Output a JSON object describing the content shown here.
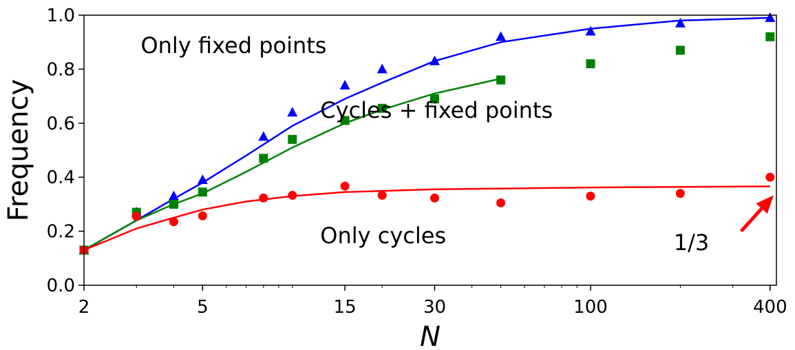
{
  "chart_data": {
    "type": "scatter",
    "xlabel": "N",
    "ylabel": "Frequency",
    "xscale": "log",
    "xlim": [
      2,
      420
    ],
    "ylim": [
      0,
      1.0
    ],
    "x_tick_labels": [
      "2",
      "5",
      "15",
      "30",
      "100",
      "400"
    ],
    "y_tick_labels": [
      "0.0",
      "0.2",
      "0.4",
      "0.6",
      "0.8",
      "1.0"
    ],
    "grid": false,
    "legend": "none",
    "series": [
      {
        "marker": "triangle",
        "color": "#0000ff",
        "points": [
          {
            "x": 2,
            "y": 0.13
          },
          {
            "x": 3,
            "y": 0.27
          },
          {
            "x": 4,
            "y": 0.33
          },
          {
            "x": 5,
            "y": 0.39
          },
          {
            "x": 8,
            "y": 0.55
          },
          {
            "x": 10,
            "y": 0.64
          },
          {
            "x": 15,
            "y": 0.74
          },
          {
            "x": 20,
            "y": 0.8
          },
          {
            "x": 30,
            "y": 0.83
          },
          {
            "x": 50,
            "y": 0.92
          },
          {
            "x": 100,
            "y": 0.94
          },
          {
            "x": 200,
            "y": 0.97
          },
          {
            "x": 400,
            "y": 0.99
          }
        ],
        "fit": [
          {
            "x": 2,
            "y": 0.13
          },
          {
            "x": 3,
            "y": 0.24
          },
          {
            "x": 4,
            "y": 0.32
          },
          {
            "x": 5,
            "y": 0.38
          },
          {
            "x": 7,
            "y": 0.48
          },
          {
            "x": 10,
            "y": 0.59
          },
          {
            "x": 15,
            "y": 0.69
          },
          {
            "x": 20,
            "y": 0.75
          },
          {
            "x": 30,
            "y": 0.83
          },
          {
            "x": 50,
            "y": 0.9
          },
          {
            "x": 100,
            "y": 0.95
          },
          {
            "x": 200,
            "y": 0.98
          },
          {
            "x": 400,
            "y": 0.99
          }
        ]
      },
      {
        "marker": "square",
        "color": "#008000",
        "points": [
          {
            "x": 2,
            "y": 0.13
          },
          {
            "x": 3,
            "y": 0.27
          },
          {
            "x": 4,
            "y": 0.3
          },
          {
            "x": 5,
            "y": 0.345
          },
          {
            "x": 8,
            "y": 0.47
          },
          {
            "x": 10,
            "y": 0.54
          },
          {
            "x": 15,
            "y": 0.61
          },
          {
            "x": 20,
            "y": 0.655
          },
          {
            "x": 30,
            "y": 0.69
          },
          {
            "x": 50,
            "y": 0.76
          },
          {
            "x": 100,
            "y": 0.82
          },
          {
            "x": 200,
            "y": 0.87
          },
          {
            "x": 400,
            "y": 0.92
          }
        ],
        "fit": [
          {
            "x": 2,
            "y": 0.13
          },
          {
            "x": 3,
            "y": 0.24
          },
          {
            "x": 4,
            "y": 0.3
          },
          {
            "x": 5,
            "y": 0.34
          },
          {
            "x": 7,
            "y": 0.42
          },
          {
            "x": 10,
            "y": 0.51
          },
          {
            "x": 15,
            "y": 0.6
          },
          {
            "x": 20,
            "y": 0.65
          },
          {
            "x": 30,
            "y": 0.71
          },
          {
            "x": 50,
            "y": 0.765
          }
        ]
      },
      {
        "marker": "circle",
        "color": "#ff0000",
        "points": [
          {
            "x": 2,
            "y": 0.13
          },
          {
            "x": 3,
            "y": 0.255
          },
          {
            "x": 4,
            "y": 0.235
          },
          {
            "x": 5,
            "y": 0.257
          },
          {
            "x": 8,
            "y": 0.323
          },
          {
            "x": 10,
            "y": 0.333
          },
          {
            "x": 15,
            "y": 0.367
          },
          {
            "x": 20,
            "y": 0.333
          },
          {
            "x": 30,
            "y": 0.323
          },
          {
            "x": 50,
            "y": 0.305
          },
          {
            "x": 100,
            "y": 0.33
          },
          {
            "x": 200,
            "y": 0.34
          },
          {
            "x": 400,
            "y": 0.4
          }
        ],
        "fit": [
          {
            "x": 2,
            "y": 0.13
          },
          {
            "x": 3,
            "y": 0.21
          },
          {
            "x": 4,
            "y": 0.25
          },
          {
            "x": 5,
            "y": 0.28
          },
          {
            "x": 7,
            "y": 0.31
          },
          {
            "x": 10,
            "y": 0.33
          },
          {
            "x": 15,
            "y": 0.345
          },
          {
            "x": 30,
            "y": 0.355
          },
          {
            "x": 100,
            "y": 0.362
          },
          {
            "x": 400,
            "y": 0.366
          }
        ]
      }
    ],
    "annotations": [
      {
        "text": "Only fixed points",
        "x": 3.1,
        "y": 0.86
      },
      {
        "text": "Cycles + fixed points",
        "x": 12.4,
        "y": 0.62
      },
      {
        "text": "Only cycles",
        "x": 12.4,
        "y": 0.155
      },
      {
        "text": "1/3",
        "x": 190,
        "y": 0.13
      }
    ],
    "arrow": {
      "from": {
        "x": 320,
        "y": 0.2
      },
      "to": {
        "x": 420,
        "y": 0.333
      },
      "color": "#ff0000"
    }
  }
}
